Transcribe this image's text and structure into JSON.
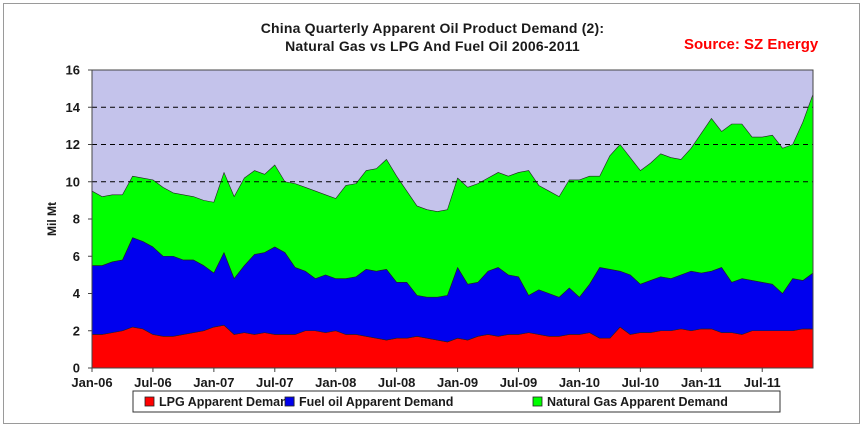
{
  "header": {
    "title_line1": "China Quarterly Apparent Oil Product Demand (2):",
    "title_line2": "Natural Gas vs LPG And Fuel Oil 2006-2011",
    "source": "Source: SZ Energy"
  },
  "colors": {
    "plot_bg": "#c4c3eb",
    "lpg": "#ff0000",
    "fuel_oil": "#0000ee",
    "natural_gas": "#00ff00",
    "gridline": "#000000"
  },
  "chart_data": {
    "type": "area",
    "stacked": true,
    "title": "China Quarterly Apparent Oil Product Demand (2): Natural Gas vs LPG And Fuel Oil 2006-2011",
    "xlabel": "",
    "ylabel": "Mil Mt",
    "ylim": [
      0,
      16
    ],
    "yticks": [
      "0",
      "2",
      "4",
      "6",
      "8",
      "10",
      "12",
      "14",
      "16"
    ],
    "xtick_labels": [
      "Jan-06",
      "Jul-06",
      "Jan-07",
      "Jul-07",
      "Jan-08",
      "Jul-08",
      "Jan-09",
      "Jul-09",
      "Jan-10",
      "Jul-10",
      "Jan-11",
      "Jul-11"
    ],
    "grid": "horizontal dashed lines at 10, 12, 14",
    "legend_position": "bottom",
    "x": [
      "Jan-06",
      "Feb-06",
      "Mar-06",
      "Apr-06",
      "May-06",
      "Jun-06",
      "Jul-06",
      "Aug-06",
      "Sep-06",
      "Oct-06",
      "Nov-06",
      "Dec-06",
      "Jan-07",
      "Feb-07",
      "Mar-07",
      "Apr-07",
      "May-07",
      "Jun-07",
      "Jul-07",
      "Aug-07",
      "Sep-07",
      "Oct-07",
      "Nov-07",
      "Dec-07",
      "Jan-08",
      "Feb-08",
      "Mar-08",
      "Apr-08",
      "May-08",
      "Jun-08",
      "Jul-08",
      "Aug-08",
      "Sep-08",
      "Oct-08",
      "Nov-08",
      "Dec-08",
      "Jan-09",
      "Feb-09",
      "Mar-09",
      "Apr-09",
      "May-09",
      "Jun-09",
      "Jul-09",
      "Aug-09",
      "Sep-09",
      "Oct-09",
      "Nov-09",
      "Dec-09",
      "Jan-10",
      "Feb-10",
      "Mar-10",
      "Apr-10",
      "May-10",
      "Jun-10",
      "Jul-10",
      "Aug-10",
      "Sep-10",
      "Oct-10",
      "Nov-10",
      "Dec-10",
      "Jan-11",
      "Feb-11",
      "Mar-11",
      "Apr-11",
      "May-11",
      "Jun-11",
      "Jul-11",
      "Aug-11",
      "Sep-11",
      "Oct-11",
      "Nov-11",
      "Dec-11"
    ],
    "series": [
      {
        "name": "LPG Apparent Demand",
        "values": [
          1.8,
          1.8,
          1.9,
          2.0,
          2.2,
          2.1,
          1.8,
          1.7,
          1.7,
          1.8,
          1.9,
          2.0,
          2.2,
          2.3,
          1.8,
          1.9,
          1.8,
          1.9,
          1.8,
          1.8,
          1.8,
          2.0,
          2.0,
          1.9,
          2.0,
          1.8,
          1.8,
          1.7,
          1.6,
          1.5,
          1.6,
          1.6,
          1.7,
          1.6,
          1.5,
          1.4,
          1.6,
          1.5,
          1.7,
          1.8,
          1.7,
          1.8,
          1.8,
          1.9,
          1.8,
          1.7,
          1.7,
          1.8,
          1.8,
          1.9,
          1.6,
          1.6,
          2.2,
          1.8,
          1.9,
          1.9,
          2.0,
          2.0,
          2.1,
          2.0,
          2.1,
          2.1,
          1.9,
          1.9,
          1.8,
          2.0,
          2.0,
          2.0,
          2.0,
          2.0,
          2.1,
          2.1
        ]
      },
      {
        "name": "Fuel oil  Apparent Demand",
        "values": [
          3.7,
          3.7,
          3.8,
          3.8,
          4.8,
          4.7,
          4.7,
          4.3,
          4.3,
          4.0,
          3.9,
          3.5,
          2.9,
          3.9,
          3.0,
          3.6,
          4.3,
          4.3,
          4.7,
          4.4,
          3.6,
          3.2,
          2.8,
          3.1,
          2.8,
          3.0,
          3.1,
          3.6,
          3.6,
          3.8,
          3.0,
          3.0,
          2.2,
          2.2,
          2.3,
          2.5,
          3.8,
          3.0,
          2.9,
          3.4,
          3.7,
          3.2,
          3.1,
          2.0,
          2.4,
          2.3,
          2.1,
          2.5,
          2.0,
          2.6,
          3.8,
          3.7,
          3.0,
          3.2,
          2.6,
          2.8,
          2.9,
          2.8,
          2.9,
          3.2,
          3.0,
          3.1,
          3.5,
          2.7,
          3.0,
          2.7,
          2.6,
          2.5,
          2.0,
          2.8,
          2.6,
          3.0
        ]
      },
      {
        "name": "Natural Gas Apparent Demand",
        "values": [
          4.0,
          3.7,
          3.6,
          3.5,
          3.3,
          3.4,
          3.6,
          3.7,
          3.4,
          3.5,
          3.4,
          3.5,
          3.8,
          4.3,
          4.4,
          4.7,
          4.5,
          4.2,
          4.4,
          3.8,
          4.5,
          4.5,
          4.7,
          4.3,
          4.3,
          5.0,
          5.0,
          5.3,
          5.5,
          5.9,
          5.7,
          4.9,
          4.8,
          4.7,
          4.6,
          4.6,
          4.8,
          5.2,
          5.3,
          5.0,
          5.1,
          5.3,
          5.6,
          6.7,
          5.6,
          5.5,
          5.4,
          5.8,
          6.3,
          5.8,
          4.9,
          6.1,
          6.8,
          6.3,
          6.1,
          6.3,
          6.6,
          6.5,
          6.2,
          6.6,
          7.5,
          8.2,
          7.3,
          8.5,
          8.3,
          7.7,
          7.8,
          8.0,
          7.8,
          7.2,
          8.5,
          9.6
        ]
      }
    ]
  }
}
